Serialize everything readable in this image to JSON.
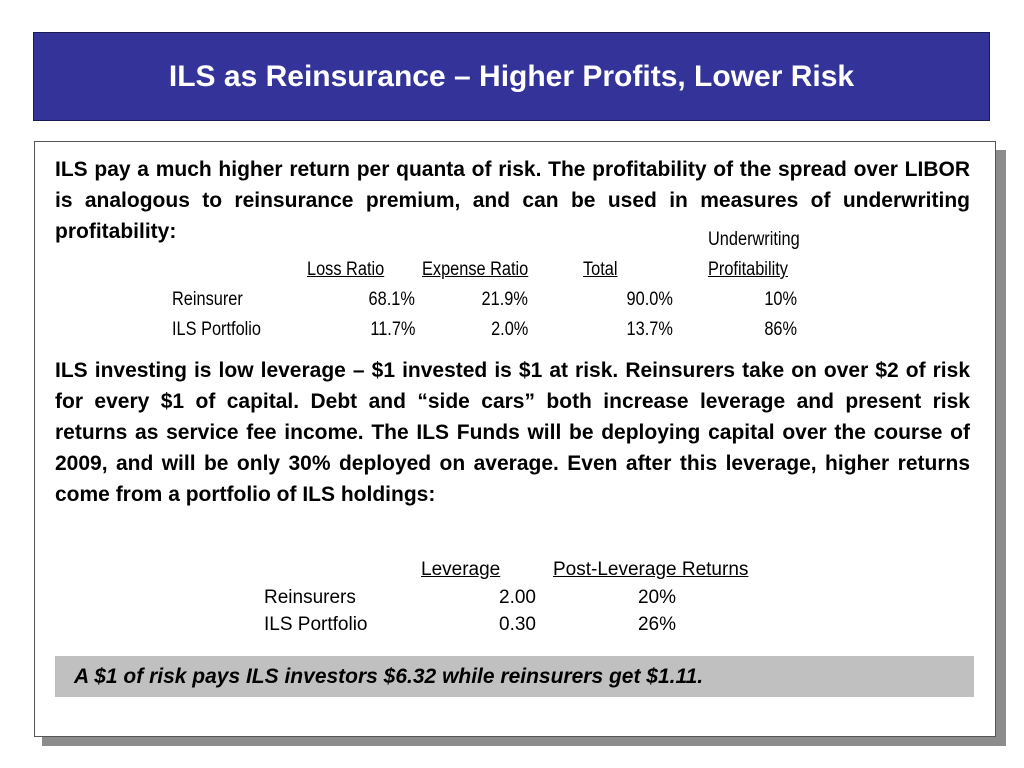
{
  "title": "ILS as Reinsurance – Higher Profits, Lower Risk",
  "paragraph1": "ILS pay a much higher return per quanta of risk.  The profitability of the spread over LIBOR is analogous to reinsurance premium, and can be used in measures of underwriting profitability:",
  "table1": {
    "headers": {
      "loss_ratio": "Loss Ratio",
      "expense_ratio": "Expense Ratio",
      "total": "Total",
      "underwriting_line1": "Underwriting",
      "underwriting_line2": "Profitability"
    },
    "rows": [
      {
        "label": "Reinsurer",
        "loss_ratio": "68.1%",
        "expense_ratio": "21.9%",
        "total": "90.0%",
        "profitability": "10%"
      },
      {
        "label": "ILS Portfolio",
        "loss_ratio": "11.7%",
        "expense_ratio": "2.0%",
        "total": "13.7%",
        "profitability": "86%"
      }
    ]
  },
  "paragraph2": "ILS investing is low leverage – $1 invested is $1 at risk.  Reinsurers take on over $2 of risk for every $1 of capital. Debt and “side cars” both increase leverage and present risk returns as service fee income.  The ILS Funds will be deploying capital over the course of 2009, and will be only 30% deployed on average.  Even after this leverage, higher returns come from a portfolio of ILS holdings:",
  "table2": {
    "headers": {
      "leverage": "Leverage",
      "returns": "Post-Leverage Returns"
    },
    "rows": [
      {
        "label": "Reinsurers",
        "leverage": "2.00",
        "returns": "20%"
      },
      {
        "label": "ILS Portfolio",
        "leverage": "0.30",
        "returns": "26%"
      }
    ]
  },
  "callout": "A $1 of risk pays ILS investors $6.32 while reinsurers get $1.11."
}
